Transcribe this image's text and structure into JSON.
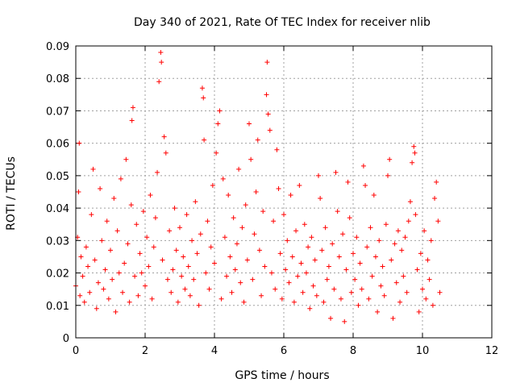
{
  "chart_data": {
    "type": "scatter",
    "title": "Day 340 of 2021, Rate Of TEC Index for receiver nlib",
    "xlabel": "GPS time / hours",
    "ylabel": "ROTI / TECUs",
    "xlim": [
      0,
      12
    ],
    "ylim": [
      0,
      0.09
    ],
    "x_ticks": [
      0,
      2,
      4,
      6,
      8,
      10,
      12
    ],
    "y_ticks": [
      0,
      0.01,
      0.02,
      0.03,
      0.04,
      0.05,
      0.06,
      0.07,
      0.08,
      0.09
    ],
    "x_tick_labels": [
      "0",
      "2",
      "4",
      "6",
      "8",
      "10",
      "12"
    ],
    "y_tick_labels": [
      "0",
      "0.01",
      "0.02",
      "0.03",
      "0.04",
      "0.05",
      "0.06",
      "0.07",
      "0.08",
      "0.09"
    ],
    "grid": true,
    "marker": "+",
    "marker_color": "#ff0000",
    "data_span_hours": [
      0,
      10.5
    ],
    "series": [
      {
        "name": "ROTI",
        "points": [
          [
            0.0,
            0.016
          ],
          [
            0.05,
            0.031
          ],
          [
            0.08,
            0.045
          ],
          [
            0.1,
            0.06
          ],
          [
            0.12,
            0.013
          ],
          [
            0.15,
            0.025
          ],
          [
            0.2,
            0.019
          ],
          [
            0.25,
            0.011
          ],
          [
            0.3,
            0.028
          ],
          [
            0.35,
            0.022
          ],
          [
            0.4,
            0.014
          ],
          [
            0.45,
            0.038
          ],
          [
            0.5,
            0.052
          ],
          [
            0.55,
            0.024
          ],
          [
            0.6,
            0.009
          ],
          [
            0.65,
            0.017
          ],
          [
            0.7,
            0.046
          ],
          [
            0.75,
            0.03
          ],
          [
            0.8,
            0.015
          ],
          [
            0.85,
            0.021
          ],
          [
            0.9,
            0.036
          ],
          [
            0.95,
            0.012
          ],
          [
            1.0,
            0.027
          ],
          [
            1.05,
            0.018
          ],
          [
            1.1,
            0.043
          ],
          [
            1.15,
            0.008
          ],
          [
            1.2,
            0.033
          ],
          [
            1.25,
            0.02
          ],
          [
            1.3,
            0.049
          ],
          [
            1.35,
            0.014
          ],
          [
            1.4,
            0.023
          ],
          [
            1.45,
            0.055
          ],
          [
            1.5,
            0.029
          ],
          [
            1.55,
            0.011
          ],
          [
            1.6,
            0.041
          ],
          [
            1.62,
            0.067
          ],
          [
            1.65,
            0.071
          ],
          [
            1.7,
            0.019
          ],
          [
            1.75,
            0.035
          ],
          [
            1.8,
            0.013
          ],
          [
            1.85,
            0.026
          ],
          [
            1.9,
            0.02
          ],
          [
            1.95,
            0.039
          ],
          [
            2.0,
            0.016
          ],
          [
            2.05,
            0.031
          ],
          [
            2.1,
            0.022
          ],
          [
            2.15,
            0.044
          ],
          [
            2.2,
            0.012
          ],
          [
            2.25,
            0.028
          ],
          [
            2.3,
            0.037
          ],
          [
            2.35,
            0.051
          ],
          [
            2.4,
            0.079
          ],
          [
            2.45,
            0.088
          ],
          [
            2.47,
            0.085
          ],
          [
            2.5,
            0.024
          ],
          [
            2.55,
            0.062
          ],
          [
            2.6,
            0.057
          ],
          [
            2.65,
            0.018
          ],
          [
            2.7,
            0.033
          ],
          [
            2.75,
            0.014
          ],
          [
            2.8,
            0.021
          ],
          [
            2.85,
            0.04
          ],
          [
            2.9,
            0.027
          ],
          [
            2.95,
            0.011
          ],
          [
            3.0,
            0.034
          ],
          [
            3.05,
            0.019
          ],
          [
            3.1,
            0.025
          ],
          [
            3.15,
            0.015
          ],
          [
            3.2,
            0.038
          ],
          [
            3.25,
            0.022
          ],
          [
            3.3,
            0.013
          ],
          [
            3.35,
            0.03
          ],
          [
            3.4,
            0.018
          ],
          [
            3.45,
            0.042
          ],
          [
            3.5,
            0.026
          ],
          [
            3.55,
            0.01
          ],
          [
            3.6,
            0.032
          ],
          [
            3.65,
            0.077
          ],
          [
            3.68,
            0.074
          ],
          [
            3.7,
            0.061
          ],
          [
            3.75,
            0.02
          ],
          [
            3.8,
            0.036
          ],
          [
            3.85,
            0.015
          ],
          [
            3.9,
            0.028
          ],
          [
            3.95,
            0.047
          ],
          [
            4.0,
            0.023
          ],
          [
            4.05,
            0.057
          ],
          [
            4.1,
            0.066
          ],
          [
            4.15,
            0.07
          ],
          [
            4.2,
            0.012
          ],
          [
            4.25,
            0.049
          ],
          [
            4.3,
            0.031
          ],
          [
            4.35,
            0.019
          ],
          [
            4.4,
            0.044
          ],
          [
            4.45,
            0.025
          ],
          [
            4.5,
            0.014
          ],
          [
            4.55,
            0.037
          ],
          [
            4.6,
            0.021
          ],
          [
            4.65,
            0.029
          ],
          [
            4.7,
            0.052
          ],
          [
            4.75,
            0.017
          ],
          [
            4.8,
            0.034
          ],
          [
            4.85,
            0.011
          ],
          [
            4.9,
            0.041
          ],
          [
            4.95,
            0.024
          ],
          [
            5.0,
            0.066
          ],
          [
            5.05,
            0.055
          ],
          [
            5.1,
            0.018
          ],
          [
            5.15,
            0.032
          ],
          [
            5.2,
            0.045
          ],
          [
            5.25,
            0.061
          ],
          [
            5.3,
            0.027
          ],
          [
            5.35,
            0.013
          ],
          [
            5.4,
            0.039
          ],
          [
            5.45,
            0.022
          ],
          [
            5.5,
            0.075
          ],
          [
            5.52,
            0.085
          ],
          [
            5.55,
            0.069
          ],
          [
            5.6,
            0.064
          ],
          [
            5.65,
            0.02
          ],
          [
            5.7,
            0.036
          ],
          [
            5.75,
            0.015
          ],
          [
            5.8,
            0.058
          ],
          [
            5.85,
            0.046
          ],
          [
            5.9,
            0.026
          ],
          [
            5.95,
            0.012
          ],
          [
            6.0,
            0.038
          ],
          [
            6.05,
            0.021
          ],
          [
            6.1,
            0.03
          ],
          [
            6.15,
            0.017
          ],
          [
            6.2,
            0.044
          ],
          [
            6.25,
            0.025
          ],
          [
            6.3,
            0.011
          ],
          [
            6.35,
            0.033
          ],
          [
            6.4,
            0.019
          ],
          [
            6.45,
            0.047
          ],
          [
            6.5,
            0.023
          ],
          [
            6.55,
            0.014
          ],
          [
            6.6,
            0.035
          ],
          [
            6.65,
            0.02
          ],
          [
            6.7,
            0.028
          ],
          [
            6.75,
            0.009
          ],
          [
            6.8,
            0.031
          ],
          [
            6.85,
            0.016
          ],
          [
            6.9,
            0.024
          ],
          [
            6.95,
            0.013
          ],
          [
            7.0,
            0.05
          ],
          [
            7.05,
            0.043
          ],
          [
            7.1,
            0.027
          ],
          [
            7.15,
            0.011
          ],
          [
            7.2,
            0.034
          ],
          [
            7.25,
            0.018
          ],
          [
            7.3,
            0.022
          ],
          [
            7.35,
            0.006
          ],
          [
            7.4,
            0.029
          ],
          [
            7.45,
            0.015
          ],
          [
            7.5,
            0.051
          ],
          [
            7.55,
            0.039
          ],
          [
            7.6,
            0.025
          ],
          [
            7.65,
            0.012
          ],
          [
            7.7,
            0.032
          ],
          [
            7.75,
            0.005
          ],
          [
            7.8,
            0.021
          ],
          [
            7.85,
            0.048
          ],
          [
            7.9,
            0.037
          ],
          [
            7.95,
            0.014
          ],
          [
            8.0,
            0.026
          ],
          [
            8.05,
            0.018
          ],
          [
            8.1,
            0.031
          ],
          [
            8.15,
            0.01
          ],
          [
            8.2,
            0.023
          ],
          [
            8.25,
            0.015
          ],
          [
            8.3,
            0.053
          ],
          [
            8.35,
            0.047
          ],
          [
            8.4,
            0.028
          ],
          [
            8.45,
            0.012
          ],
          [
            8.5,
            0.034
          ],
          [
            8.55,
            0.019
          ],
          [
            8.6,
            0.044
          ],
          [
            8.65,
            0.025
          ],
          [
            8.7,
            0.008
          ],
          [
            8.75,
            0.03
          ],
          [
            8.8,
            0.016
          ],
          [
            8.85,
            0.022
          ],
          [
            8.9,
            0.013
          ],
          [
            8.95,
            0.035
          ],
          [
            9.0,
            0.05
          ],
          [
            9.05,
            0.055
          ],
          [
            9.1,
            0.024
          ],
          [
            9.15,
            0.006
          ],
          [
            9.2,
            0.029
          ],
          [
            9.25,
            0.017
          ],
          [
            9.3,
            0.033
          ],
          [
            9.35,
            0.011
          ],
          [
            9.4,
            0.027
          ],
          [
            9.45,
            0.019
          ],
          [
            9.5,
            0.031
          ],
          [
            9.55,
            0.014
          ],
          [
            9.6,
            0.036
          ],
          [
            9.65,
            0.042
          ],
          [
            9.7,
            0.054
          ],
          [
            9.75,
            0.059
          ],
          [
            9.78,
            0.057
          ],
          [
            9.8,
            0.038
          ],
          [
            9.85,
            0.021
          ],
          [
            9.9,
            0.008
          ],
          [
            9.95,
            0.026
          ],
          [
            10.0,
            0.015
          ],
          [
            10.05,
            0.033
          ],
          [
            10.1,
            0.012
          ],
          [
            10.15,
            0.024
          ],
          [
            10.2,
            0.018
          ],
          [
            10.25,
            0.03
          ],
          [
            10.3,
            0.01
          ],
          [
            10.35,
            0.043
          ],
          [
            10.4,
            0.048
          ],
          [
            10.45,
            0.036
          ],
          [
            10.5,
            0.014
          ]
        ]
      }
    ]
  }
}
